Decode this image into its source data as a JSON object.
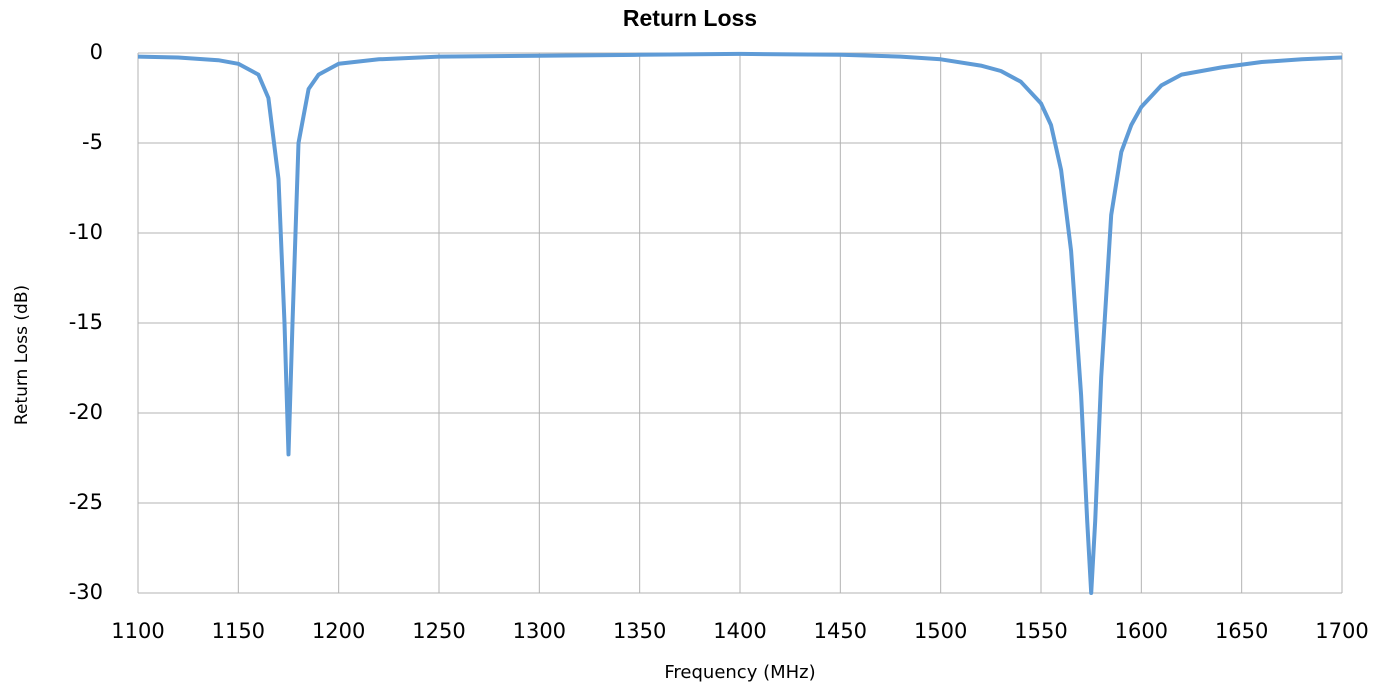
{
  "chart_data": {
    "type": "line",
    "title": "Return Loss",
    "x_label": "Frequency (MHz)",
    "y_label": "Return Loss (dB)",
    "x": [
      1100,
      1120,
      1140,
      1150,
      1160,
      1165,
      1170,
      1173,
      1175,
      1177,
      1180,
      1185,
      1190,
      1200,
      1220,
      1250,
      1300,
      1350,
      1400,
      1450,
      1480,
      1500,
      1520,
      1530,
      1540,
      1550,
      1555,
      1560,
      1565,
      1570,
      1573,
      1575,
      1577,
      1580,
      1585,
      1590,
      1595,
      1600,
      1610,
      1620,
      1640,
      1660,
      1680,
      1700
    ],
    "values": [
      -0.2,
      -0.25,
      -0.4,
      -0.6,
      -1.2,
      -2.5,
      -7,
      -15,
      -22.3,
      -15,
      -5,
      -2,
      -1.2,
      -0.6,
      -0.35,
      -0.2,
      -0.15,
      -0.1,
      -0.05,
      -0.1,
      -0.2,
      -0.35,
      -0.7,
      -1.0,
      -1.6,
      -2.8,
      -4,
      -6.5,
      -11,
      -19,
      -26,
      -30,
      -26,
      -18,
      -9,
      -5.5,
      -4,
      -3,
      -1.8,
      -1.2,
      -0.8,
      -0.5,
      -0.35,
      -0.25
    ],
    "color": "#5f9bd6",
    "xlim": [
      1100,
      1700
    ],
    "xticks": [
      1100,
      1150,
      1200,
      1250,
      1300,
      1350,
      1400,
      1450,
      1500,
      1550,
      1600,
      1650,
      1700
    ],
    "ylim": [
      -30,
      0
    ],
    "yticks": [
      0,
      -5,
      -10,
      -15,
      -20,
      -25,
      -30
    ],
    "grid": true
  }
}
